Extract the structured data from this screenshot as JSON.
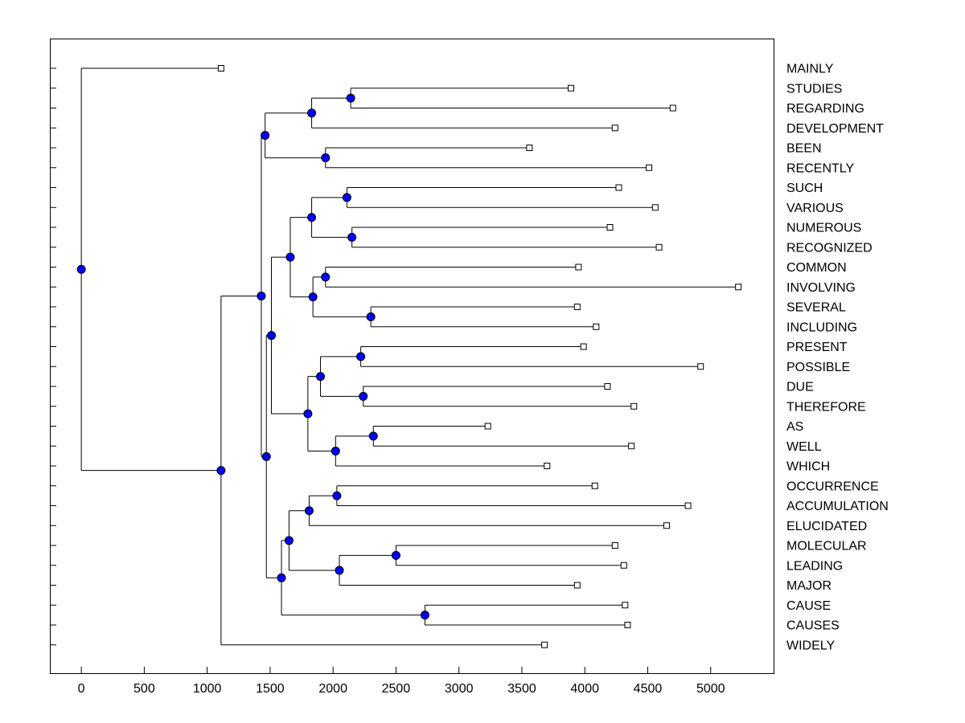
{
  "chart_data": {
    "type": "dendrogram",
    "title": "",
    "xlabel": "",
    "ylabel": "",
    "xlim": [
      -250,
      5500
    ],
    "x_ticks": [
      0,
      500,
      1000,
      1500,
      2000,
      2500,
      3000,
      3500,
      4000,
      4500,
      5000
    ],
    "x_tick_labels": [
      "0",
      "500",
      "1000",
      "1500",
      "2000",
      "2500",
      "3000",
      "3500",
      "4000",
      "4500",
      "5000"
    ],
    "grid": false,
    "colors": {
      "node_fill": "#0000ff",
      "leaf_fill": "#ffffff",
      "line": "#000000"
    },
    "leaves": [
      {
        "label": "MAINLY",
        "value": 1110
      },
      {
        "label": "STUDIES",
        "value": 3890
      },
      {
        "label": "REGARDING",
        "value": 4700
      },
      {
        "label": "DEVELOPMENT",
        "value": 4240
      },
      {
        "label": "BEEN",
        "value": 3560
      },
      {
        "label": "RECENTLY",
        "value": 4510
      },
      {
        "label": "SUCH",
        "value": 4270
      },
      {
        "label": "VARIOUS",
        "value": 4560
      },
      {
        "label": "NUMEROUS",
        "value": 4200
      },
      {
        "label": "RECOGNIZED",
        "value": 4590
      },
      {
        "label": "COMMON",
        "value": 3950
      },
      {
        "label": "INVOLVING",
        "value": 5220
      },
      {
        "label": "SEVERAL",
        "value": 3940
      },
      {
        "label": "INCLUDING",
        "value": 4090
      },
      {
        "label": "PRESENT",
        "value": 3990
      },
      {
        "label": "POSSIBLE",
        "value": 4920
      },
      {
        "label": "DUE",
        "value": 4180
      },
      {
        "label": "THEREFORE",
        "value": 4390
      },
      {
        "label": "AS",
        "value": 3230
      },
      {
        "label": "WELL",
        "value": 4370
      },
      {
        "label": "WHICH",
        "value": 3700
      },
      {
        "label": "OCCURRENCE",
        "value": 4080
      },
      {
        "label": "ACCUMULATION",
        "value": 4820
      },
      {
        "label": "ELUCIDATED",
        "value": 4650
      },
      {
        "label": "MOLECULAR",
        "value": 4240
      },
      {
        "label": "LEADING",
        "value": 4310
      },
      {
        "label": "MAJOR",
        "value": 3940
      },
      {
        "label": "CAUSE",
        "value": 4320
      },
      {
        "label": "CAUSES",
        "value": 4340
      },
      {
        "label": "WIDELY",
        "value": 3680
      }
    ],
    "merges": [
      {
        "id": "m1",
        "value": 2140,
        "children": [
          "STUDIES",
          "REGARDING"
        ]
      },
      {
        "id": "m2",
        "value": 1830,
        "children": [
          "m1",
          "DEVELOPMENT"
        ]
      },
      {
        "id": "m3",
        "value": 1940,
        "children": [
          "BEEN",
          "RECENTLY"
        ]
      },
      {
        "id": "m4",
        "value": 1460,
        "children": [
          "m2",
          "m3"
        ]
      },
      {
        "id": "m5",
        "value": 2110,
        "children": [
          "SUCH",
          "VARIOUS"
        ]
      },
      {
        "id": "m6",
        "value": 2150,
        "children": [
          "NUMEROUS",
          "RECOGNIZED"
        ]
      },
      {
        "id": "m7",
        "value": 1830,
        "children": [
          "m5",
          "m6"
        ]
      },
      {
        "id": "m8",
        "value": 1940,
        "children": [
          "COMMON",
          "INVOLVING"
        ]
      },
      {
        "id": "m9",
        "value": 2300,
        "children": [
          "SEVERAL",
          "INCLUDING"
        ]
      },
      {
        "id": "m10",
        "value": 1840,
        "children": [
          "m8",
          "m9"
        ]
      },
      {
        "id": "m11",
        "value": 1660,
        "children": [
          "m7",
          "m10"
        ]
      },
      {
        "id": "m12",
        "value": 2220,
        "children": [
          "PRESENT",
          "POSSIBLE"
        ]
      },
      {
        "id": "m13",
        "value": 2240,
        "children": [
          "DUE",
          "THEREFORE"
        ]
      },
      {
        "id": "m14",
        "value": 1900,
        "children": [
          "m12",
          "m13"
        ]
      },
      {
        "id": "m15",
        "value": 2320,
        "children": [
          "AS",
          "WELL"
        ]
      },
      {
        "id": "m16",
        "value": 2020,
        "children": [
          "m15",
          "WHICH"
        ]
      },
      {
        "id": "m17",
        "value": 1800,
        "children": [
          "m14",
          "m16"
        ]
      },
      {
        "id": "m18",
        "value": 1510,
        "children": [
          "m11",
          "m17"
        ]
      },
      {
        "id": "m19",
        "value": 2030,
        "children": [
          "OCCURRENCE",
          "ACCUMULATION"
        ]
      },
      {
        "id": "m20",
        "value": 1810,
        "children": [
          "m19",
          "ELUCIDATED"
        ]
      },
      {
        "id": "m21",
        "value": 2500,
        "children": [
          "MOLECULAR",
          "LEADING"
        ]
      },
      {
        "id": "m22",
        "value": 2050,
        "children": [
          "m21",
          "MAJOR"
        ]
      },
      {
        "id": "m23",
        "value": 1650,
        "children": [
          "m20",
          "m22"
        ]
      },
      {
        "id": "m24",
        "value": 2730,
        "children": [
          "CAUSE",
          "CAUSES"
        ]
      },
      {
        "id": "m25",
        "value": 1590,
        "children": [
          "m23",
          "m24"
        ]
      },
      {
        "id": "m26",
        "value": 1470,
        "children": [
          "m18",
          "m25"
        ]
      },
      {
        "id": "m27",
        "value": 1430,
        "children": [
          "m4",
          "m26"
        ]
      },
      {
        "id": "m28",
        "value": 1110,
        "children": [
          "m27",
          "WIDELY"
        ]
      },
      {
        "id": "m29",
        "value": 0,
        "children": [
          "MAINLY",
          "m28"
        ]
      }
    ]
  }
}
